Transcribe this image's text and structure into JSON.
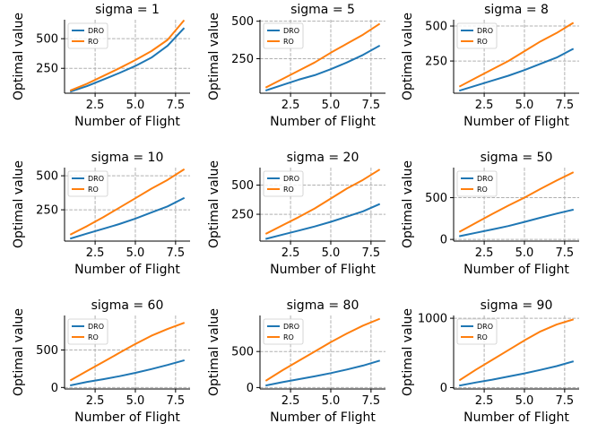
{
  "figure": {
    "background": "#ffffff"
  },
  "style": {
    "dro_color": "#1f77b4",
    "ro_color": "#ff7f0e",
    "grid_color": "#b0b0b0",
    "grid_style": "dashed"
  },
  "chart_data": [
    {
      "type": "line",
      "title": "sigma = 1",
      "xlabel": "Number of Flight",
      "ylabel": "Optimal value",
      "x": [
        1,
        2,
        3,
        4,
        5,
        6,
        7,
        8
      ],
      "xlim": [
        0.6,
        8.4
      ],
      "ylim": [
        40,
        660
      ],
      "xticks": [
        2.5,
        5.0,
        7.5
      ],
      "xtick_labels": [
        "2.5",
        "5.0",
        "7.5"
      ],
      "yticks": [
        250,
        500
      ],
      "ytick_labels": [
        "250",
        "500"
      ],
      "legend": {
        "loc": "upper-left",
        "entries": [
          "DRO",
          "RO"
        ]
      },
      "grid": true,
      "series": [
        {
          "name": "DRO",
          "values": [
            55,
            100,
            155,
            210,
            270,
            340,
            440,
            585
          ]
        },
        {
          "name": "RO",
          "values": [
            65,
            120,
            185,
            250,
            320,
            395,
            490,
            650
          ]
        }
      ]
    },
    {
      "type": "line",
      "title": "sigma = 5",
      "xlabel": "Number of Flight",
      "ylabel": "Optimal value",
      "x": [
        1,
        2,
        3,
        4,
        5,
        6,
        7,
        8
      ],
      "xlim": [
        0.6,
        8.4
      ],
      "ylim": [
        20,
        510
      ],
      "xticks": [
        2.5,
        5.0,
        7.5
      ],
      "xtick_labels": [
        "2.5",
        "5.0",
        "7.5"
      ],
      "yticks": [
        250,
        500
      ],
      "ytick_labels": [
        "250",
        "500"
      ],
      "legend": {
        "loc": "upper-left",
        "entries": [
          "DRO",
          "RO"
        ]
      },
      "grid": true,
      "series": [
        {
          "name": "DRO",
          "values": [
            40,
            75,
            110,
            140,
            180,
            225,
            275,
            335
          ]
        },
        {
          "name": "RO",
          "values": [
            60,
            115,
            170,
            225,
            290,
            350,
            410,
            480
          ]
        }
      ]
    },
    {
      "type": "line",
      "title": "sigma = 8",
      "xlabel": "Number of Flight",
      "ylabel": "Optimal value",
      "x": [
        1,
        2,
        3,
        4,
        5,
        6,
        7,
        8
      ],
      "xlim": [
        0.6,
        8.4
      ],
      "ylim": [
        20,
        545
      ],
      "xticks": [
        2.5,
        5.0,
        7.5
      ],
      "xtick_labels": [
        "2.5",
        "5.0",
        "7.5"
      ],
      "yticks": [
        250,
        500
      ],
      "ytick_labels": [
        "250",
        "500"
      ],
      "legend": {
        "loc": "upper-left",
        "entries": [
          "DRO",
          "RO"
        ]
      },
      "grid": true,
      "series": [
        {
          "name": "DRO",
          "values": [
            40,
            75,
            110,
            145,
            185,
            230,
            275,
            335
          ]
        },
        {
          "name": "RO",
          "values": [
            70,
            130,
            190,
            250,
            320,
            390,
            450,
            520
          ]
        }
      ]
    },
    {
      "type": "line",
      "title": "sigma = 10",
      "xlabel": "Number of Flight",
      "ylabel": "Optimal value",
      "x": [
        1,
        2,
        3,
        4,
        5,
        6,
        7,
        8
      ],
      "xlim": [
        0.6,
        8.4
      ],
      "ylim": [
        20,
        560
      ],
      "xticks": [
        2.5,
        5.0,
        7.5
      ],
      "xtick_labels": [
        "2.5",
        "5.0",
        "7.5"
      ],
      "yticks": [
        250,
        500
      ],
      "ytick_labels": [
        "250",
        "500"
      ],
      "legend": {
        "loc": "upper-left",
        "entries": [
          "DRO",
          "RO"
        ]
      },
      "grid": true,
      "series": [
        {
          "name": "DRO",
          "values": [
            40,
            75,
            110,
            145,
            185,
            230,
            275,
            335
          ]
        },
        {
          "name": "RO",
          "values": [
            70,
            130,
            195,
            265,
            335,
            405,
            470,
            545
          ]
        }
      ]
    },
    {
      "type": "line",
      "title": "sigma = 20",
      "xlabel": "Number of Flight",
      "ylabel": "Optimal value",
      "x": [
        1,
        2,
        3,
        4,
        5,
        6,
        7,
        8
      ],
      "xlim": [
        0.6,
        8.4
      ],
      "ylim": [
        20,
        650
      ],
      "xticks": [
        2.5,
        5.0,
        7.5
      ],
      "xtick_labels": [
        "2.5",
        "5.0",
        "7.5"
      ],
      "yticks": [
        250,
        500
      ],
      "ytick_labels": [
        "250",
        "500"
      ],
      "legend": {
        "loc": "upper-left",
        "entries": [
          "DRO",
          "RO"
        ]
      },
      "grid": true,
      "series": [
        {
          "name": "DRO",
          "values": [
            40,
            75,
            110,
            145,
            185,
            230,
            275,
            335
          ]
        },
        {
          "name": "RO",
          "values": [
            85,
            155,
            225,
            300,
            385,
            470,
            545,
            630
          ]
        }
      ]
    },
    {
      "type": "line",
      "title": "sigma = 50",
      "xlabel": "Number of Flight",
      "ylabel": "Optimal value",
      "x": [
        1,
        2,
        3,
        4,
        5,
        6,
        7,
        8
      ],
      "xlim": [
        0.6,
        8.4
      ],
      "ylim": [
        -20,
        860
      ],
      "xticks": [
        2.5,
        5.0,
        7.5
      ],
      "xtick_labels": [
        "2.5",
        "5.0",
        "7.5"
      ],
      "yticks": [
        0,
        500
      ],
      "ytick_labels": [
        "0",
        "500"
      ],
      "legend": {
        "loc": "upper-left",
        "entries": [
          "DRO",
          "RO"
        ]
      },
      "grid": true,
      "series": [
        {
          "name": "DRO",
          "values": [
            40,
            80,
            120,
            160,
            210,
            260,
            310,
            355
          ]
        },
        {
          "name": "RO",
          "values": [
            95,
            200,
            305,
            405,
            500,
            605,
            705,
            800
          ]
        }
      ]
    },
    {
      "type": "line",
      "title": "sigma = 60",
      "xlabel": "Number of Flight",
      "ylabel": "Optimal value",
      "x": [
        1,
        2,
        3,
        4,
        5,
        6,
        7,
        8
      ],
      "xlim": [
        0.6,
        8.4
      ],
      "ylim": [
        -20,
        960
      ],
      "xticks": [
        2.5,
        5.0,
        7.5
      ],
      "xtick_labels": [
        "2.5",
        "5.0",
        "7.5"
      ],
      "yticks": [
        0,
        500
      ],
      "ytick_labels": [
        "0",
        "500"
      ],
      "legend": {
        "loc": "upper-left",
        "entries": [
          "DRO",
          "RO"
        ]
      },
      "grid": true,
      "series": [
        {
          "name": "DRO",
          "values": [
            30,
            75,
            110,
            150,
            195,
            245,
            300,
            360
          ]
        },
        {
          "name": "RO",
          "values": [
            100,
            220,
            340,
            460,
            580,
            690,
            780,
            860
          ]
        }
      ]
    },
    {
      "type": "line",
      "title": "sigma = 80",
      "xlabel": "Number of Flight",
      "ylabel": "Optimal value",
      "x": [
        1,
        2,
        3,
        4,
        5,
        6,
        7,
        8
      ],
      "xlim": [
        0.6,
        8.4
      ],
      "ylim": [
        -20,
        1000
      ],
      "xticks": [
        2.5,
        5.0,
        7.5
      ],
      "xtick_labels": [
        "2.5",
        "5.0",
        "7.5"
      ],
      "yticks": [
        0,
        500
      ],
      "ytick_labels": [
        "0",
        "500"
      ],
      "legend": {
        "loc": "upper-left",
        "entries": [
          "DRO",
          "RO"
        ]
      },
      "grid": true,
      "series": [
        {
          "name": "DRO",
          "values": [
            30,
            75,
            115,
            155,
            200,
            250,
            305,
            370
          ]
        },
        {
          "name": "RO",
          "values": [
            100,
            240,
            370,
            500,
            630,
            750,
            860,
            950
          ]
        }
      ]
    },
    {
      "type": "line",
      "title": "sigma = 90",
      "xlabel": "Number of Flight",
      "ylabel": "Optimal value",
      "x": [
        1,
        2,
        3,
        4,
        5,
        6,
        7,
        8
      ],
      "xlim": [
        0.6,
        8.4
      ],
      "ylim": [
        -20,
        1040
      ],
      "xticks": [
        2.5,
        5.0,
        7.5
      ],
      "xtick_labels": [
        "2.5",
        "5.0",
        "7.5"
      ],
      "yticks": [
        0,
        1000
      ],
      "ytick_labels": [
        "0",
        "1000"
      ],
      "legend": {
        "loc": "upper-left",
        "entries": [
          "DRO",
          "RO"
        ]
      },
      "grid": true,
      "series": [
        {
          "name": "DRO",
          "values": [
            30,
            75,
            115,
            160,
            205,
            255,
            310,
            375
          ]
        },
        {
          "name": "RO",
          "values": [
            110,
            260,
            400,
            540,
            680,
            810,
            910,
            980
          ]
        }
      ]
    }
  ]
}
